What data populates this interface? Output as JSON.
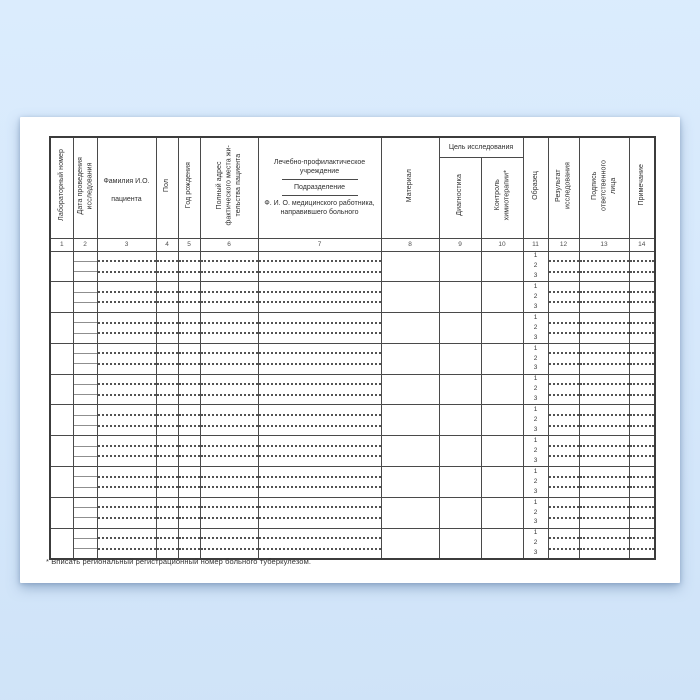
{
  "colors": {
    "background_top": "#dbecfd",
    "background_bottom": "#cfe3f8",
    "paper": "#ffffff",
    "table_line": "#4a4a4a"
  },
  "table": {
    "goal_group_header": "Цель исследования",
    "columns": [
      {
        "num": "1",
        "label": "Лабораторный номер"
      },
      {
        "num": "2",
        "label": "Дата проведения\nисследования"
      },
      {
        "num": "3",
        "label": "Фамилия И.О.\nпациента"
      },
      {
        "num": "4",
        "label": "Пол"
      },
      {
        "num": "5",
        "label": "Год рождения"
      },
      {
        "num": "6",
        "label": "Полный адрес\nфактического места жи-\nтельства пациента"
      },
      {
        "num": "7",
        "label_parts": {
          "facility": "Лечебно-профилактическое\nучреждение",
          "department": "Подразделение",
          "referrer": "Ф. И. О. медицинского работника,\nнаправившего больного"
        }
      },
      {
        "num": "8",
        "label": "Материал"
      },
      {
        "num": "9",
        "label": "Диагностика"
      },
      {
        "num": "10",
        "label": "Контроль\nхимиотерапии*"
      },
      {
        "num": "11",
        "label": "Образец"
      },
      {
        "num": "12",
        "label": "Результат\nисследования"
      },
      {
        "num": "13",
        "label": "Подпись\nответственного\nлица"
      },
      {
        "num": "14",
        "label": "Примечание"
      }
    ],
    "body": {
      "row_groups": 10,
      "sample_numbers": [
        "1",
        "2",
        "3"
      ]
    }
  },
  "document": {
    "footnote": "* Вписать региональный регистрационный номер больного туберкулезом."
  }
}
